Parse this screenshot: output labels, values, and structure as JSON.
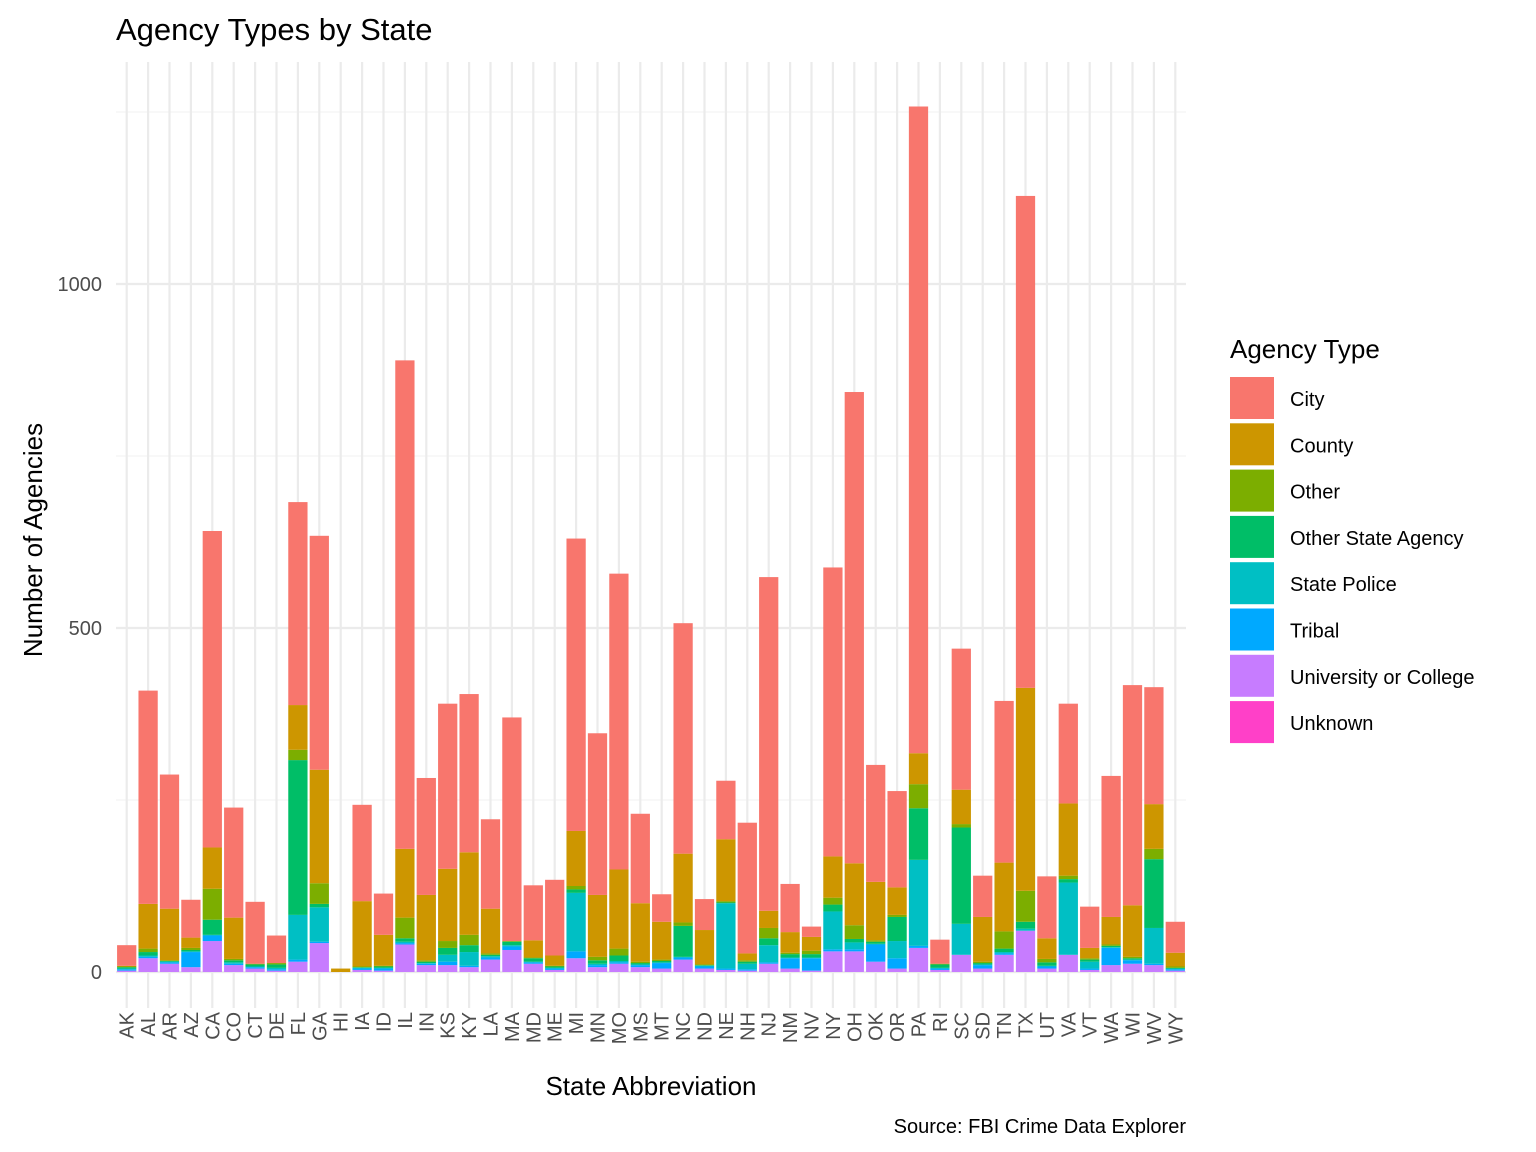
{
  "chart_data": {
    "type": "bar",
    "stacked": true,
    "title": "Agency Types by State",
    "xlabel": "State Abbreviation",
    "ylabel": "Number of Agencies",
    "caption": "Source: FBI Crime Data Explorer",
    "ylim": [
      0,
      1250
    ],
    "yticks": [
      0,
      500,
      1000
    ],
    "grid": true,
    "legend": {
      "title": "Agency Type",
      "position": "right"
    },
    "categories": [
      "AK",
      "AL",
      "AR",
      "AZ",
      "CA",
      "CO",
      "CT",
      "DE",
      "FL",
      "GA",
      "HI",
      "IA",
      "ID",
      "IL",
      "IN",
      "KS",
      "KY",
      "LA",
      "MA",
      "MD",
      "ME",
      "MI",
      "MN",
      "MO",
      "MS",
      "MT",
      "NC",
      "ND",
      "NE",
      "NH",
      "NJ",
      "NM",
      "NV",
      "NY",
      "OH",
      "OK",
      "OR",
      "PA",
      "RI",
      "SC",
      "SD",
      "TN",
      "TX",
      "UT",
      "VA",
      "VT",
      "WA",
      "WI",
      "WV",
      "WY"
    ],
    "series": [
      {
        "name": "Unknown",
        "color": "#FF40C8",
        "values": [
          0,
          0,
          0,
          0,
          0,
          0,
          0,
          0,
          0,
          0,
          0,
          0,
          0,
          0,
          0,
          0,
          0,
          0,
          0,
          0,
          0,
          0,
          0,
          0,
          0,
          0,
          0,
          0,
          0,
          0,
          0,
          0,
          0,
          0,
          0,
          0,
          0,
          0,
          0,
          0,
          0,
          0,
          0,
          0,
          0,
          0,
          0,
          0,
          0,
          0
        ]
      },
      {
        "name": "University or College",
        "color": "#C77CFF",
        "values": [
          2,
          20,
          12,
          7,
          45,
          10,
          5,
          2,
          15,
          42,
          0,
          3,
          2,
          40,
          10,
          10,
          7,
          18,
          32,
          12,
          3,
          20,
          7,
          12,
          7,
          5,
          18,
          5,
          3,
          2,
          12,
          5,
          2,
          30,
          30,
          15,
          5,
          35,
          3,
          25,
          5,
          25,
          60,
          5,
          25,
          3,
          10,
          12,
          10,
          2
        ]
      },
      {
        "name": "Tribal",
        "color": "#00A9FF",
        "values": [
          2,
          2,
          2,
          22,
          8,
          2,
          2,
          2,
          3,
          2,
          0,
          2,
          3,
          2,
          2,
          5,
          2,
          3,
          5,
          2,
          2,
          10,
          3,
          2,
          3,
          8,
          3,
          3,
          2,
          2,
          2,
          15,
          18,
          3,
          3,
          25,
          15,
          3,
          2,
          0,
          5,
          2,
          0,
          3,
          0,
          2,
          25,
          5,
          2,
          2
        ]
      },
      {
        "name": "State Police",
        "color": "#00BFC4",
        "values": [
          1,
          2,
          1,
          1,
          1,
          2,
          1,
          2,
          65,
          50,
          0,
          1,
          1,
          2,
          1,
          10,
          20,
          2,
          2,
          1,
          1,
          85,
          2,
          2,
          1,
          1,
          1,
          1,
          95,
          8,
          25,
          1,
          1,
          55,
          10,
          1,
          25,
          125,
          1,
          45,
          1,
          2,
          3,
          1,
          105,
          10,
          1,
          1,
          52,
          1
        ]
      },
      {
        "name": "Other State Agency",
        "color": "#00BE67",
        "values": [
          2,
          5,
          1,
          2,
          22,
          3,
          3,
          5,
          225,
          5,
          0,
          1,
          2,
          5,
          2,
          10,
          10,
          2,
          5,
          5,
          2,
          5,
          5,
          8,
          2,
          2,
          45,
          1,
          1,
          3,
          10,
          5,
          5,
          10,
          5,
          3,
          35,
          75,
          5,
          140,
          2,
          5,
          10,
          5,
          5,
          3,
          2,
          2,
          100,
          1
        ]
      },
      {
        "name": "Other",
        "color": "#7CAE00",
        "values": [
          1,
          5,
          1,
          3,
          45,
          2,
          1,
          2,
          15,
          30,
          0,
          1,
          1,
          30,
          2,
          10,
          15,
          2,
          1,
          1,
          1,
          5,
          5,
          10,
          2,
          2,
          5,
          1,
          2,
          2,
          15,
          2,
          5,
          10,
          20,
          2,
          3,
          35,
          1,
          5,
          2,
          25,
          45,
          5,
          5,
          2,
          2,
          2,
          15,
          2
        ]
      },
      {
        "name": "County",
        "color": "#CD9600",
        "values": [
          1,
          65,
          75,
          15,
          60,
          60,
          0,
          0,
          65,
          165,
          5,
          95,
          45,
          100,
          95,
          105,
          120,
          65,
          0,
          25,
          15,
          80,
          90,
          115,
          85,
          55,
          100,
          50,
          90,
          10,
          25,
          30,
          20,
          60,
          90,
          85,
          40,
          45,
          0,
          50,
          65,
          100,
          295,
          30,
          105,
          15,
          40,
          75,
          65,
          20
        ],
        "colorNote": "amber"
      },
      {
        "name": "City",
        "color": "#F8766D",
        "values": [
          30,
          310,
          195,
          55,
          460,
          160,
          90,
          40,
          295,
          340,
          0,
          140,
          60,
          710,
          170,
          240,
          230,
          130,
          325,
          80,
          110,
          425,
          235,
          430,
          130,
          40,
          335,
          45,
          85,
          190,
          485,
          70,
          15,
          420,
          685,
          170,
          140,
          940,
          35,
          205,
          60,
          235,
          715,
          90,
          145,
          60,
          205,
          320,
          170,
          45
        ]
      }
    ]
  }
}
